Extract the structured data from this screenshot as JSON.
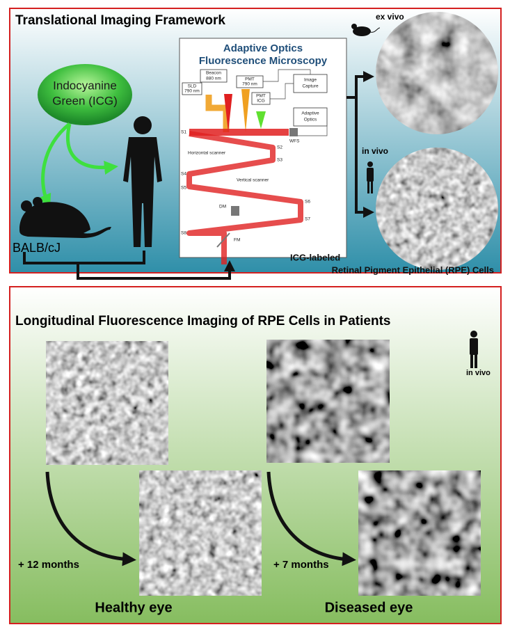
{
  "panel_top": {
    "title": "Translational Imaging Framework",
    "dye": [
      "Indocyanine",
      "Green (ICG)"
    ],
    "mouse_strain": "BALB/cJ",
    "microscope": {
      "title": [
        "Adaptive Optics",
        "Fluorescence Microscopy"
      ],
      "beacon": [
        "Beacon",
        "880 nm"
      ],
      "sld": [
        "SLD",
        "790 nm"
      ],
      "pmt_790": [
        "PMT",
        "790 nm"
      ],
      "pmt_icg": [
        "PMT",
        "ICG"
      ],
      "image_capture": [
        "Image",
        "Capture"
      ],
      "adaptive_optics": [
        "Adaptive",
        "Optics"
      ],
      "mirrors": [
        "S1",
        "S2",
        "S3",
        "S4",
        "S5",
        "S6",
        "S7",
        "S8"
      ],
      "horizontal_scanner": "Horizontal scanner",
      "vertical_scanner": "Vertical scanner",
      "dm": "DM",
      "fm": "FM",
      "wfs": "WFS"
    },
    "ex_vivo": "ex vivo",
    "in_vivo": "in vivo",
    "caption": [
      "ICG-labeled",
      "Retinal Pigment Epithelial (RPE) Cells"
    ]
  },
  "panel_bottom": {
    "title": "Longitudinal Fluorescence Imaging of RPE Cells in Patients",
    "in_vivo": "in vivo",
    "healthy_interval": "+ 12 months",
    "diseased_interval": "+ 7 months",
    "healthy_label": "Healthy eye",
    "diseased_label": "Diseased eye"
  }
}
